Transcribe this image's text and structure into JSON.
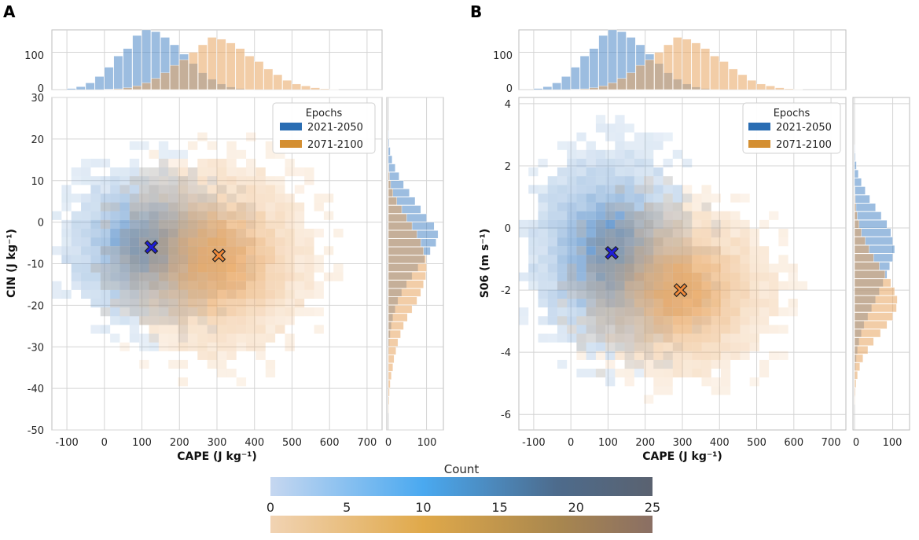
{
  "chart_data": [
    {
      "panel": "A",
      "type": "heatmap",
      "xlabel": "CAPE (J kg⁻¹)",
      "ylabel": "CIN (J kg⁻¹)",
      "xlim": [
        -140,
        740
      ],
      "ylim": [
        -50,
        30
      ],
      "xticks": [
        "-100",
        "0",
        "100",
        "200",
        "300",
        "400",
        "500",
        "600",
        "700"
      ],
      "yticks": [
        "-50",
        "-40",
        "-30",
        "-20",
        "-10",
        "0",
        "10",
        "20",
        "30"
      ],
      "legend": {
        "title": "Epochs",
        "entries": [
          "2021-2050",
          "2071-2100"
        ],
        "position": "top-right"
      },
      "centroids": [
        {
          "series": "2021-2050",
          "x": 125,
          "y": -6,
          "color": "#1f1fd9"
        },
        {
          "series": "2071-2100",
          "x": 305,
          "y": -8,
          "color": "#f28a3a"
        }
      ],
      "series_dist": [
        {
          "name": "2021-2050",
          "x_mean": 120,
          "x_sd": 95,
          "y_mean": -6,
          "y_sd": 8
        },
        {
          "name": "2071-2100",
          "x_mean": 300,
          "x_sd": 110,
          "y_mean": -9,
          "y_sd": 10
        }
      ],
      "top_hist": {
        "yticks": [
          "0",
          "100"
        ],
        "ylim": [
          0,
          160
        ],
        "bin_edges_start": -100,
        "bin_width": 25,
        "series": [
          {
            "name": "2021-2050",
            "values": [
              3,
              8,
              18,
              35,
              60,
              90,
              110,
              145,
              160,
              155,
              140,
              120,
              95,
              70,
              45,
              28,
              15,
              7,
              3,
              1,
              0,
              0,
              0,
              0,
              0,
              0,
              0,
              0,
              0,
              0,
              0,
              0
            ]
          },
          {
            "name": "2071-2100",
            "values": [
              0,
              0,
              0,
              0,
              1,
              2,
              5,
              10,
              18,
              30,
              45,
              65,
              80,
              100,
              120,
              140,
              135,
              125,
              110,
              90,
              75,
              55,
              40,
              25,
              15,
              10,
              5,
              2,
              1,
              0,
              0,
              0
            ]
          }
        ]
      },
      "right_hist": {
        "xticks": [
          "0",
          "100"
        ],
        "xlim": [
          0,
          140
        ],
        "bin_edges_start": -50,
        "bin_width": 2,
        "series": [
          {
            "name": "2021-2050",
            "values": [
              0,
              0,
              0,
              0,
              0,
              0,
              0,
              0,
              1,
              2,
              3,
              5,
              8,
              12,
              18,
              25,
              35,
              48,
              62,
              78,
              95,
              110,
              125,
              130,
              120,
              100,
              85,
              70,
              55,
              40,
              28,
              18,
              10,
              5,
              2,
              1,
              0,
              0,
              0,
              0
            ]
          },
          {
            "name": "2071-2100",
            "values": [
              0,
              0,
              1,
              2,
              3,
              5,
              8,
              12,
              15,
              20,
              25,
              32,
              40,
              50,
              62,
              75,
              85,
              92,
              98,
              100,
              98,
              92,
              85,
              75,
              62,
              48,
              35,
              22,
              12,
              6,
              3,
              1,
              0,
              0,
              0,
              0,
              0,
              0,
              0,
              0
            ]
          }
        ]
      }
    },
    {
      "panel": "B",
      "type": "heatmap",
      "xlabel": "CAPE (J kg⁻¹)",
      "ylabel": "S06 (m s⁻¹)",
      "xlim": [
        -140,
        740
      ],
      "ylim": [
        -6.5,
        4.2
      ],
      "xticks": [
        "-100",
        "0",
        "100",
        "200",
        "300",
        "400",
        "500",
        "600",
        "700"
      ],
      "yticks": [
        "-6",
        "-4",
        "-2",
        "0",
        "2",
        "4"
      ],
      "legend": {
        "title": "Epochs",
        "entries": [
          "2021-2050",
          "2071-2100"
        ],
        "position": "top-right"
      },
      "centroids": [
        {
          "series": "2021-2050",
          "x": 110,
          "y": -0.8,
          "color": "#1f1fd9"
        },
        {
          "series": "2071-2100",
          "x": 295,
          "y": -2.0,
          "color": "#f28a3a"
        }
      ],
      "series_dist": [
        {
          "name": "2021-2050",
          "x_mean": 110,
          "x_sd": 95,
          "y_mean": -0.8,
          "y_sd": 1.4
        },
        {
          "name": "2071-2100",
          "x_mean": 295,
          "x_sd": 110,
          "y_mean": -2.0,
          "y_sd": 1.2
        }
      ],
      "top_hist": {
        "yticks": [
          "0",
          "100"
        ],
        "ylim": [
          0,
          160
        ],
        "bin_edges_start": -100,
        "bin_width": 25,
        "series": [
          {
            "name": "2021-2050",
            "values": [
              3,
              8,
              18,
              35,
              60,
              90,
              110,
              145,
              160,
              155,
              140,
              120,
              95,
              70,
              45,
              28,
              15,
              7,
              3,
              1,
              0,
              0,
              0,
              0,
              0,
              0,
              0,
              0,
              0,
              0,
              0,
              0
            ]
          },
          {
            "name": "2071-2100",
            "values": [
              0,
              0,
              0,
              0,
              1,
              2,
              5,
              10,
              18,
              30,
              45,
              65,
              80,
              100,
              120,
              140,
              135,
              125,
              110,
              90,
              75,
              55,
              40,
              25,
              15,
              10,
              5,
              2,
              1,
              0,
              0,
              0
            ]
          }
        ]
      },
      "right_hist": {
        "xticks": [
          "0",
          "100"
        ],
        "xlim": [
          0,
          140
        ],
        "bin_edges_start": -6.5,
        "bin_width": 0.27,
        "series": [
          {
            "name": "2021-2050",
            "values": [
              0,
              0,
              0,
              0,
              0,
              1,
              2,
              3,
              5,
              8,
              12,
              18,
              25,
              35,
              45,
              55,
              65,
              75,
              85,
              92,
              100,
              105,
              100,
              95,
              85,
              70,
              55,
              40,
              28,
              18,
              10,
              5,
              2,
              1,
              0,
              0,
              0,
              0,
              0,
              0
            ]
          },
          {
            "name": "2071-2100",
            "values": [
              0,
              0,
              0,
              1,
              2,
              4,
              8,
              14,
              22,
              35,
              50,
              68,
              85,
              100,
              110,
              112,
              105,
              95,
              80,
              65,
              50,
              38,
              28,
              18,
              12,
              7,
              4,
              2,
              1,
              0,
              0,
              0,
              0,
              0,
              0,
              0,
              0,
              0,
              0,
              0
            ]
          }
        ]
      }
    }
  ],
  "colorbar": {
    "title": "Count",
    "ticks": [
      "0",
      "5",
      "10",
      "15",
      "20",
      "25"
    ],
    "range": [
      0,
      25
    ],
    "blue_scale": [
      "#c6d7f0",
      "#4aa9f0",
      "#4d6b8c",
      "#5a6270"
    ],
    "orange_scale": [
      "#f1d3b3",
      "#e0a94a",
      "#a9874e",
      "#8a6f64"
    ]
  },
  "colors": {
    "blue": "#4a86c6",
    "orange": "#e8a45e",
    "legend_blue": "#2a6db3",
    "legend_orange": "#d48f32"
  }
}
